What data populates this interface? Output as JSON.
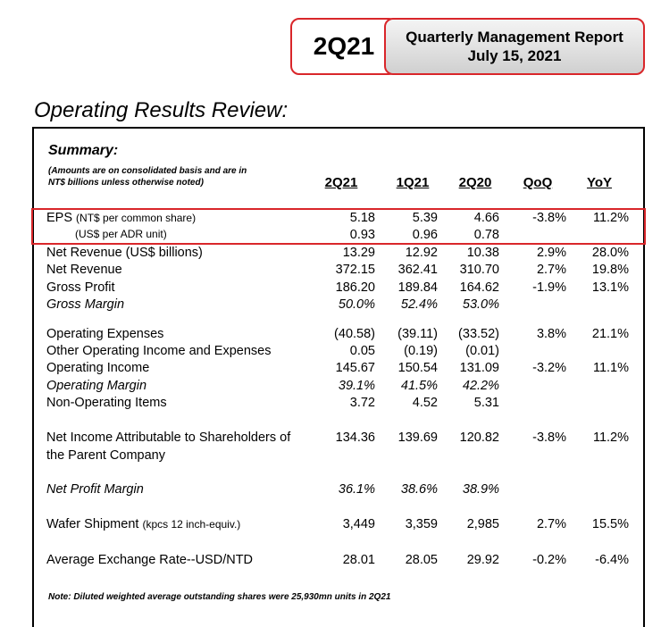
{
  "header": {
    "quarter": "2Q21",
    "report_title": "Quarterly Management Report",
    "report_date": "July 15, 2021"
  },
  "section_title": "Operating Results Review:",
  "summary_title": "Summary:",
  "amounts_note_line1": "(Amounts are on consolidated basis and are in",
  "amounts_note_line2": "NT$ billions unless otherwise noted)",
  "columns": [
    "2Q21",
    "1Q21",
    "2Q20",
    "QoQ",
    "YoY"
  ],
  "eps": {
    "label_main": "EPS",
    "label_sub1": "(NT$ per common share)",
    "label_sub2": "(US$ per ADR unit)",
    "ntd": [
      "5.18",
      "5.39",
      "4.66",
      "-3.8%",
      "11.2%"
    ],
    "usd": [
      "0.93",
      "0.96",
      "0.78",
      "",
      ""
    ]
  },
  "rows": [
    {
      "label": "Net Revenue (US$ billions)",
      "values": [
        "13.29",
        "12.92",
        "10.38",
        "2.9%",
        "28.0%"
      ]
    },
    {
      "label": "Net Revenue",
      "values": [
        "372.15",
        "362.41",
        "310.70",
        "2.7%",
        "19.8%"
      ]
    },
    {
      "label": "Gross Profit",
      "values": [
        "186.20",
        "189.84",
        "164.62",
        "-1.9%",
        "13.1%"
      ]
    },
    {
      "label": "Gross Margin",
      "values": [
        "50.0%",
        "52.4%",
        "53.0%",
        "",
        ""
      ]
    },
    {
      "label": "Operating Expenses",
      "values": [
        "(40.58)",
        "(39.11)",
        "(33.52)",
        "3.8%",
        "21.1%"
      ]
    },
    {
      "label": "Other Operating Income and Expenses",
      "values": [
        "0.05",
        "(0.19)",
        "(0.01)",
        "",
        ""
      ]
    },
    {
      "label": "Operating Income",
      "values": [
        "145.67",
        "150.54",
        "131.09",
        "-3.2%",
        "11.1%"
      ]
    },
    {
      "label": "Operating Margin",
      "values": [
        "39.1%",
        "41.5%",
        "42.2%",
        "",
        ""
      ]
    },
    {
      "label": "Non-Operating Items",
      "values": [
        "3.72",
        "4.52",
        "5.31",
        "",
        ""
      ]
    },
    {
      "label": "Net Income Attributable to Shareholders of",
      "label2": "the Parent Company",
      "values": [
        "134.36",
        "139.69",
        "120.82",
        "-3.8%",
        "11.2%"
      ]
    },
    {
      "label": "Net Profit Margin",
      "values": [
        "36.1%",
        "38.6%",
        "38.9%",
        "",
        ""
      ]
    },
    {
      "label": "Wafer Shipment",
      "label_sub": "(kpcs 12 inch-equiv.)",
      "values": [
        "3,449",
        "3,359",
        "2,985",
        "2.7%",
        "15.5%"
      ]
    },
    {
      "label": "Average Exchange Rate--USD/NTD",
      "values": [
        "28.01",
        "28.05",
        "29.92",
        "-0.2%",
        "-6.4%"
      ]
    }
  ],
  "footnote": "Note: Diluted weighted average outstanding shares were 25,930mn units in 2Q21"
}
